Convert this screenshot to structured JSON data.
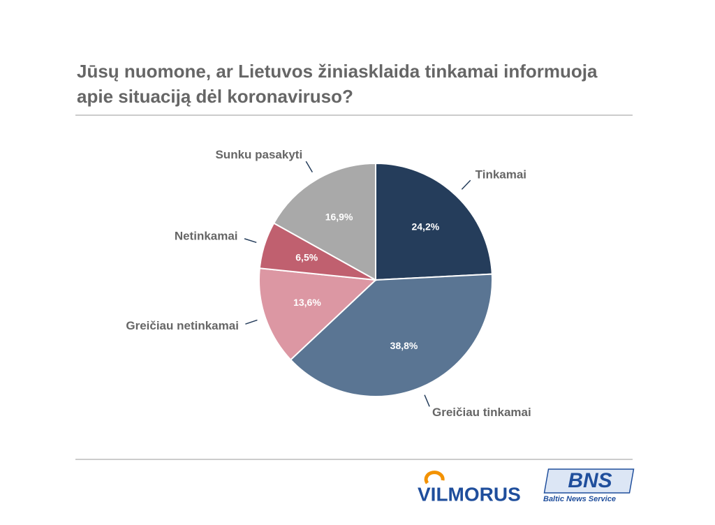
{
  "chart_data": {
    "type": "pie",
    "title": "Jūsų nuomone, ar Lietuvos žiniasklaida tinkamai informuoja apie situaciją dėl koronaviruso?",
    "categories": [
      "Tinkamai",
      "Greičiau tinkamai",
      "Greičiau netinkamai",
      "Netinkamai",
      "Sunku pasakyti"
    ],
    "values": [
      24.2,
      38.8,
      13.6,
      6.5,
      16.9
    ],
    "value_labels": [
      "24,2%",
      "38,8%",
      "13,6%",
      "6,5%",
      "16,9%"
    ],
    "colors": [
      "#253d5b",
      "#5a7593",
      "#dc97a3",
      "#c0606f",
      "#a9a9a9"
    ]
  },
  "logos": [
    "VILMORUS",
    "BNS",
    "Baltic News Service"
  ]
}
